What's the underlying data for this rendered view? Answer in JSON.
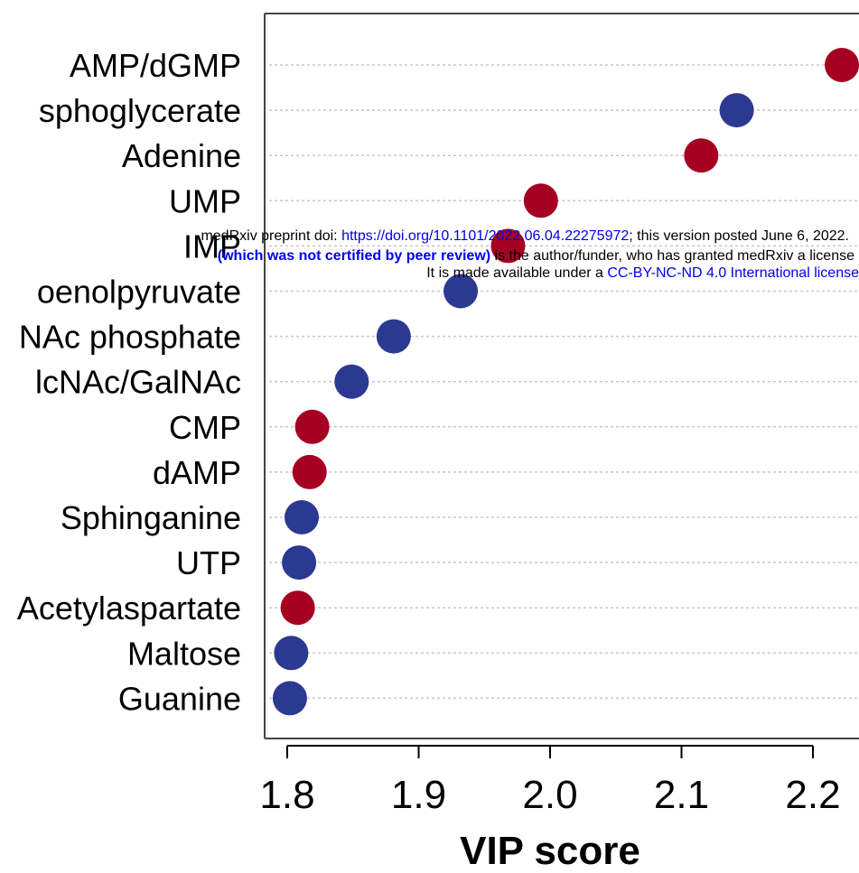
{
  "chart_data": {
    "type": "scatter",
    "categories": [
      "AMP/dGMP",
      "sphoglycerate",
      "Adenine",
      "UMP",
      "IMP",
      "oenolpyruvate",
      "NAc phosphate",
      "lcNAc/GalNAc",
      "CMP",
      "dAMP",
      "Sphinganine",
      "UTP",
      "Acetylaspartate",
      "Maltose",
      "Guanine"
    ],
    "values": [
      2.222,
      2.142,
      2.115,
      1.993,
      1.968,
      1.932,
      1.881,
      1.849,
      1.819,
      1.817,
      1.811,
      1.809,
      1.808,
      1.803,
      1.802
    ],
    "groups": [
      "red",
      "blue",
      "red",
      "red",
      "red",
      "blue",
      "blue",
      "blue",
      "red",
      "red",
      "blue",
      "blue",
      "red",
      "blue",
      "blue"
    ],
    "colors": {
      "red": "#a50021",
      "blue": "#2b3990"
    },
    "xlabel": "VIP score",
    "ylabel": "",
    "xlim": [
      1.8,
      2.2
    ],
    "xticks": [
      "1.8",
      "1.9",
      "2.0",
      "2.1",
      "2.2"
    ],
    "grid": "horizontal dotted",
    "legend": "none"
  },
  "watermark": {
    "line1_prefix": "medRxiv preprint doi: ",
    "line1_link": "https://doi.org/10.1101/2022.06.04.22275972",
    "line1_suffix": "; this version posted June 6, 2022.",
    "line2_bold": "(which was not certified by peer review)",
    "line2_rest": " is the author/funder, who has granted medRxiv a license",
    "line3_prefix": "It is made available under a ",
    "line3_link": "CC-BY-NC-ND 4.0 International license"
  }
}
